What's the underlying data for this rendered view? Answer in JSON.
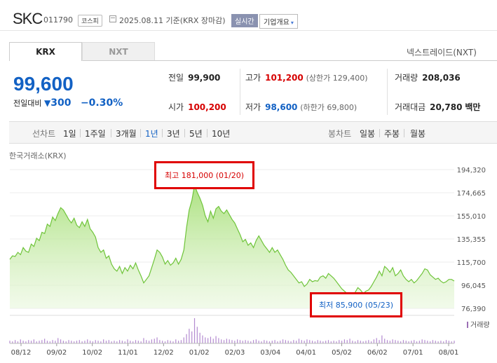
{
  "header": {
    "name": "SKC",
    "code": "011790",
    "market_badge": "코스피",
    "date_text": "2025.08.11  기준(KRX 장마감)",
    "realtime_badge": "실시간",
    "company_button": "기업개요",
    "caret": "▾"
  },
  "tabs": [
    {
      "label": "KRX"
    },
    {
      "label": "NXT"
    }
  ],
  "nxt_link": "넥스트레이드(NXT)",
  "quote": {
    "price": "99,600",
    "change_label": "전일대비",
    "change_icon": "▼",
    "change": "300",
    "change_rate": "−0.30%"
  },
  "stats": {
    "prev_close": {
      "label": "전일",
      "value": "99,900"
    },
    "high": {
      "label": "고가",
      "value": "101,200",
      "sub": "(상한가 129,400)"
    },
    "volume": {
      "label": "거래량",
      "value": "208,036"
    },
    "open": {
      "label": "시가",
      "value": "100,200"
    },
    "low": {
      "label": "저가",
      "value": "98,600",
      "sub": "(하한가 69,800)"
    },
    "amount": {
      "label": "거래대금",
      "value": "20,780",
      "unit": "백만"
    }
  },
  "periods": {
    "line_label": "선차트",
    "line_items": [
      "1일",
      "1주일",
      "3개월",
      "1년",
      "3년",
      "5년",
      "10년"
    ],
    "active": "1년",
    "candle_label": "봉차트",
    "candle_items": [
      "일봉",
      "주봉",
      "월봉"
    ]
  },
  "source_label": "한국거래소(KRX)",
  "callouts": {
    "high": "최고  181,000 (01/20)",
    "low": "최저  85,900 (05/23)"
  },
  "chart_data": {
    "type": "area",
    "title": "",
    "xlabel": "",
    "ylabel": "",
    "ylim": [
      76390,
      194320
    ],
    "y_ticks": [
      "194,320",
      "174,665",
      "155,010",
      "135,355",
      "115,700",
      "96,045",
      "76,390"
    ],
    "x_ticks": [
      "08/12",
      "09/02",
      "10/02",
      "11/01",
      "12/02",
      "01/02",
      "02/03",
      "03/04",
      "04/01",
      "05/02",
      "06/02",
      "07/01",
      "08/01"
    ],
    "volume_label": "거래량",
    "series": [
      {
        "name": "",
        "values": [
          118000,
          121000,
          120500,
          124000,
          122000,
          128000,
          125000,
          124000,
          131000,
          129000,
          136000,
          134000,
          141000,
          140000,
          148000,
          146000,
          154000,
          151000,
          157000,
          162000,
          160000,
          156000,
          152000,
          149000,
          153000,
          147000,
          145000,
          150000,
          146000,
          152000,
          144000,
          141000,
          137000,
          128000,
          124000,
          126000,
          119000,
          121000,
          114000,
          110000,
          108000,
          112000,
          106000,
          111000,
          108000,
          113000,
          110000,
          115000,
          109000,
          104000,
          98000,
          101000,
          104000,
          111000,
          118000,
          126000,
          124000,
          120000,
          114000,
          117000,
          113000,
          115000,
          119000,
          114000,
          118000,
          126000,
          145000,
          160000,
          168000,
          181000,
          175000,
          170000,
          164000,
          155000,
          150000,
          159000,
          153000,
          161000,
          163000,
          159000,
          157000,
          160000,
          156000,
          152000,
          149000,
          144000,
          139000,
          133000,
          135000,
          130000,
          132000,
          128000,
          134000,
          138000,
          134000,
          130000,
          127000,
          124000,
          128000,
          124000,
          126000,
          122000,
          118000,
          113000,
          109000,
          107000,
          104000,
          101000,
          98000,
          99000,
          95000,
          97000,
          101000,
          99000,
          100000,
          99500,
          103000,
          104000,
          102000,
          106000,
          104000,
          102000,
          99000,
          96000,
          93000,
          91000,
          89000,
          86000,
          88000,
          90000,
          94000,
          92000,
          89000,
          91000,
          92000,
          95000,
          99000,
          103000,
          108000,
          104000,
          112000,
          110000,
          107000,
          111000,
          104000,
          106000,
          109000,
          104000,
          101000,
          99000,
          101000,
          98000,
          100000,
          103000,
          106000,
          110000,
          109000,
          105000,
          103000,
          101000,
          102000,
          99500,
          98000,
          99000,
          101000,
          101000,
          99600
        ]
      }
    ],
    "volume_values": [
      4,
      3,
      5,
      3,
      6,
      4,
      3,
      5,
      4,
      6,
      3,
      4,
      5,
      7,
      4,
      3,
      5,
      4,
      8,
      6,
      4,
      3,
      5,
      4,
      3,
      4,
      5,
      3,
      4,
      6,
      4,
      3,
      5,
      4,
      3,
      6,
      4,
      5,
      3,
      4,
      3,
      5,
      4,
      3,
      6,
      4,
      3,
      5,
      4,
      3,
      8,
      5,
      4,
      6,
      7,
      9,
      5,
      4,
      3,
      5,
      4,
      3,
      6,
      4,
      5,
      9,
      14,
      22,
      18,
      38,
      25,
      16,
      12,
      9,
      8,
      10,
      7,
      11,
      8,
      6,
      5,
      7,
      6,
      5,
      4,
      6,
      5,
      4,
      5,
      4,
      3,
      5,
      6,
      4,
      3,
      5,
      4,
      3,
      4,
      5,
      3,
      4,
      6,
      5,
      4,
      3,
      5,
      4,
      7,
      5,
      4,
      6,
      5,
      4,
      3,
      5,
      4,
      3,
      4,
      5,
      3,
      4,
      3,
      5,
      4,
      6,
      5,
      7,
      4,
      3,
      5,
      4,
      3,
      4,
      5,
      3,
      6,
      8,
      5,
      12,
      7,
      5,
      4,
      6,
      5,
      4,
      3,
      5,
      4,
      3,
      4,
      5,
      3,
      4,
      6,
      5,
      4,
      3,
      5,
      4,
      3,
      4,
      3,
      5,
      4,
      3,
      4
    ]
  }
}
